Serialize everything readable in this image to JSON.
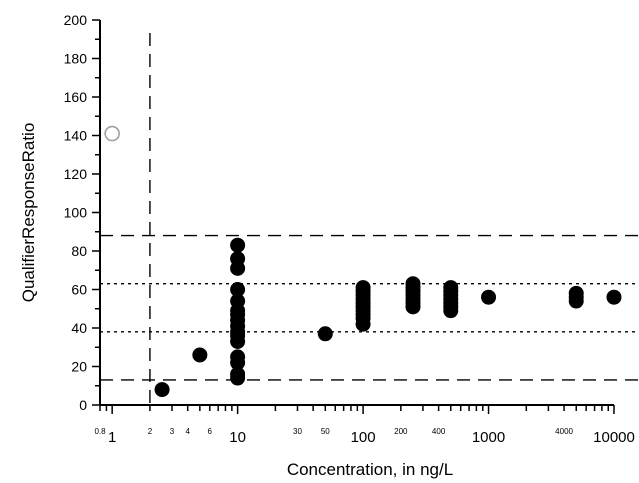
{
  "chart_data": {
    "type": "scatter",
    "title": "",
    "xlabel": "Concentration, in ng/L",
    "ylabel": "QualifierResponseRatio",
    "x_scale": "log",
    "xlim": [
      0.8,
      10000
    ],
    "ylim": [
      0,
      200
    ],
    "grid": false,
    "y_ticks": [
      0,
      20,
      40,
      60,
      80,
      100,
      120,
      140,
      160,
      180,
      200
    ],
    "y_tick_labels": [
      "0",
      "20",
      "40",
      "60",
      "80",
      "100",
      "120",
      "140",
      "160",
      "180",
      "200"
    ],
    "x_tick_labels": [
      {
        "value": 0.8,
        "label": "0.8",
        "major": false
      },
      {
        "value": 1,
        "label": "1",
        "major": true
      },
      {
        "value": 2,
        "label": "2",
        "major": false
      },
      {
        "value": 3,
        "label": "3",
        "major": false
      },
      {
        "value": 4,
        "label": "4",
        "major": false
      },
      {
        "value": 6,
        "label": "6",
        "major": false
      },
      {
        "value": 10,
        "label": "10",
        "major": true
      },
      {
        "value": 30,
        "label": "30",
        "major": false
      },
      {
        "value": 50,
        "label": "50",
        "major": false
      },
      {
        "value": 100,
        "label": "100",
        "major": true
      },
      {
        "value": 200,
        "label": "200",
        "major": false
      },
      {
        "value": 400,
        "label": "400",
        "major": false
      },
      {
        "value": 1000,
        "label": "1000",
        "major": true
      },
      {
        "value": 4000,
        "label": "4000",
        "major": false
      },
      {
        "value": 10000,
        "label": "10000",
        "major": true
      }
    ],
    "reference_lines": [
      {
        "orientation": "vertical",
        "value": 2,
        "style": "dashed"
      },
      {
        "orientation": "horizontal",
        "value": 88,
        "style": "dashed"
      },
      {
        "orientation": "horizontal",
        "value": 13,
        "style": "dashed"
      },
      {
        "orientation": "horizontal",
        "value": 63,
        "style": "dotted"
      },
      {
        "orientation": "horizontal",
        "value": 38,
        "style": "dotted"
      }
    ],
    "series": [
      {
        "marker": "open-circle",
        "points": [
          [
            1,
            141
          ]
        ]
      },
      {
        "marker": "filled-circle",
        "points": [
          [
            2.5,
            8
          ],
          [
            5,
            26
          ],
          [
            10,
            14
          ],
          [
            10,
            16
          ],
          [
            10,
            22
          ],
          [
            10,
            25
          ],
          [
            10,
            33
          ],
          [
            10,
            36
          ],
          [
            10,
            38
          ],
          [
            10,
            41
          ],
          [
            10,
            44
          ],
          [
            10,
            47
          ],
          [
            10,
            49
          ],
          [
            10,
            54
          ],
          [
            10,
            60
          ],
          [
            10,
            71
          ],
          [
            10,
            76
          ],
          [
            10,
            83
          ],
          [
            50,
            37
          ],
          [
            100,
            42
          ],
          [
            100,
            45
          ],
          [
            100,
            47
          ],
          [
            100,
            49
          ],
          [
            100,
            51
          ],
          [
            100,
            53
          ],
          [
            100,
            55
          ],
          [
            100,
            57
          ],
          [
            100,
            59
          ],
          [
            100,
            61
          ],
          [
            250,
            51
          ],
          [
            250,
            53
          ],
          [
            250,
            55
          ],
          [
            250,
            57
          ],
          [
            250,
            59
          ],
          [
            250,
            61
          ],
          [
            250,
            63
          ],
          [
            500,
            49
          ],
          [
            500,
            51
          ],
          [
            500,
            53
          ],
          [
            500,
            55
          ],
          [
            500,
            57
          ],
          [
            500,
            59
          ],
          [
            500,
            61
          ],
          [
            1000,
            56
          ],
          [
            5000,
            54
          ],
          [
            5000,
            56
          ],
          [
            5000,
            58
          ],
          [
            10000,
            56
          ]
        ]
      }
    ]
  }
}
